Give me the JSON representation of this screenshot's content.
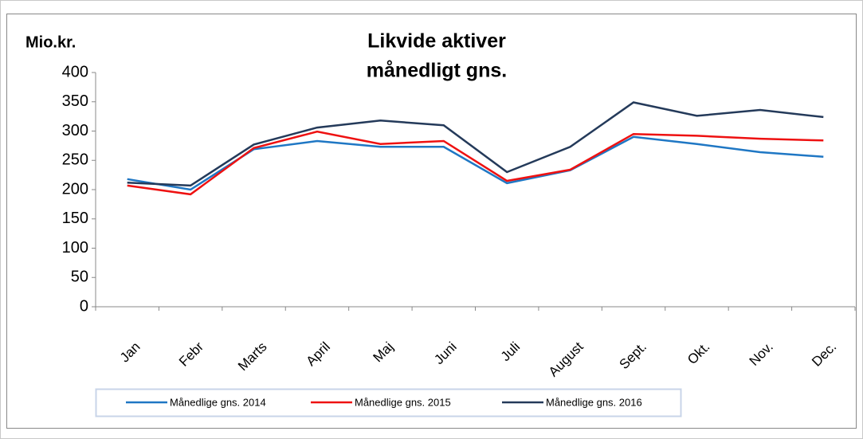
{
  "chart_data": {
    "type": "line",
    "title": "Likvide aktiver",
    "subtitle": "månedligt gns.",
    "y_label": "Mio.kr.",
    "categories": [
      "Jan",
      "Febr",
      "Marts",
      "April",
      "Maj",
      "Juni",
      "Juli",
      "August",
      "Sept.",
      "Okt.",
      "Nov.",
      "Dec."
    ],
    "series": [
      {
        "name": "Månedlige gns. 2014",
        "color": "#1f77c4",
        "values": [
          218,
          200,
          269,
          283,
          273,
          273,
          211,
          233,
          290,
          278,
          264,
          256
        ]
      },
      {
        "name": "Månedlige gns. 2015",
        "color": "#ee1111",
        "values": [
          207,
          192,
          271,
          299,
          278,
          283,
          215,
          234,
          295,
          292,
          287,
          284
        ]
      },
      {
        "name": "Månedlige gns. 2016",
        "color": "#243a5a",
        "values": [
          212,
          207,
          277,
          306,
          318,
          310,
          230,
          273,
          349,
          326,
          336,
          324
        ]
      }
    ],
    "ylim": [
      0,
      400
    ],
    "yticks": [
      0,
      50,
      100,
      150,
      200,
      250,
      300,
      350,
      400
    ]
  }
}
